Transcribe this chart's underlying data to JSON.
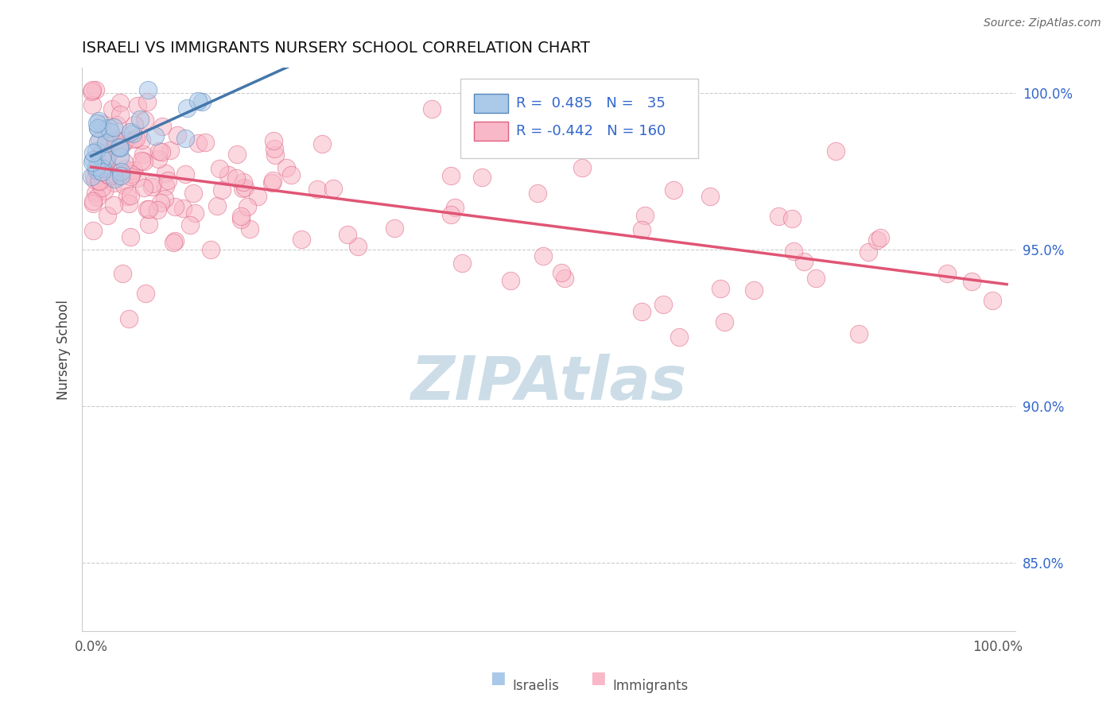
{
  "title": "ISRAELI VS IMMIGRANTS NURSERY SCHOOL CORRELATION CHART",
  "source": "Source: ZipAtlas.com",
  "ylabel": "Nursery School",
  "xlim": [
    -0.01,
    1.02
  ],
  "ylim": [
    0.828,
    1.008
  ],
  "yticks": [
    0.85,
    0.9,
    0.95,
    1.0
  ],
  "ytick_labels": [
    "85.0%",
    "90.0%",
    "95.0%",
    "100.0%"
  ],
  "xticks": [
    0.0,
    0.1,
    0.2,
    0.3,
    0.4,
    0.5,
    0.6,
    0.7,
    0.8,
    0.9,
    1.0
  ],
  "xtick_labels": [
    "0.0%",
    "",
    "",
    "",
    "",
    "",
    "",
    "",
    "",
    "",
    "100.0%"
  ],
  "israeli_color": "#aac8e8",
  "immigrant_color": "#f8b8c8",
  "israeli_edge_color": "#5588bb",
  "immigrant_edge_color": "#e06080",
  "israeli_line_color": "#4477aa",
  "immigrant_line_color": "#e05575",
  "legend_R_israeli": "0.485",
  "legend_N_israeli": "35",
  "legend_R_immigrant": "-0.442",
  "legend_N_immigrant": "160",
  "watermark": "ZIPAtlas",
  "watermark_color": "#ccdde8"
}
